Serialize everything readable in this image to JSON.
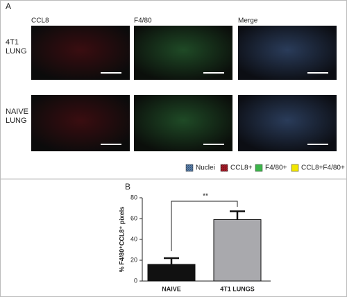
{
  "panel_a": {
    "label": "A",
    "columns": [
      "CCL8",
      "F4/80",
      "Merge"
    ],
    "rows": [
      [
        "4T1",
        "LUNG"
      ],
      [
        "NAIVE",
        "LUNG"
      ]
    ],
    "legend": [
      "Nuclei",
      "CCL8+",
      "F4/80+",
      "CCL8+F4/80+"
    ]
  },
  "chart_data": {
    "panel": "B",
    "type": "bar",
    "categories": [
      "NAIVE",
      "4T1 LUNGS"
    ],
    "values": [
      16,
      59
    ],
    "errors": [
      6,
      8
    ],
    "colors": [
      "#111111",
      "#a9a9ad"
    ],
    "ylim": [
      0,
      80
    ],
    "yticks": [
      0,
      20,
      40,
      60,
      80
    ],
    "ylabel": "% F4/80⁺CCL8⁺ pixels",
    "annotation": "**"
  }
}
